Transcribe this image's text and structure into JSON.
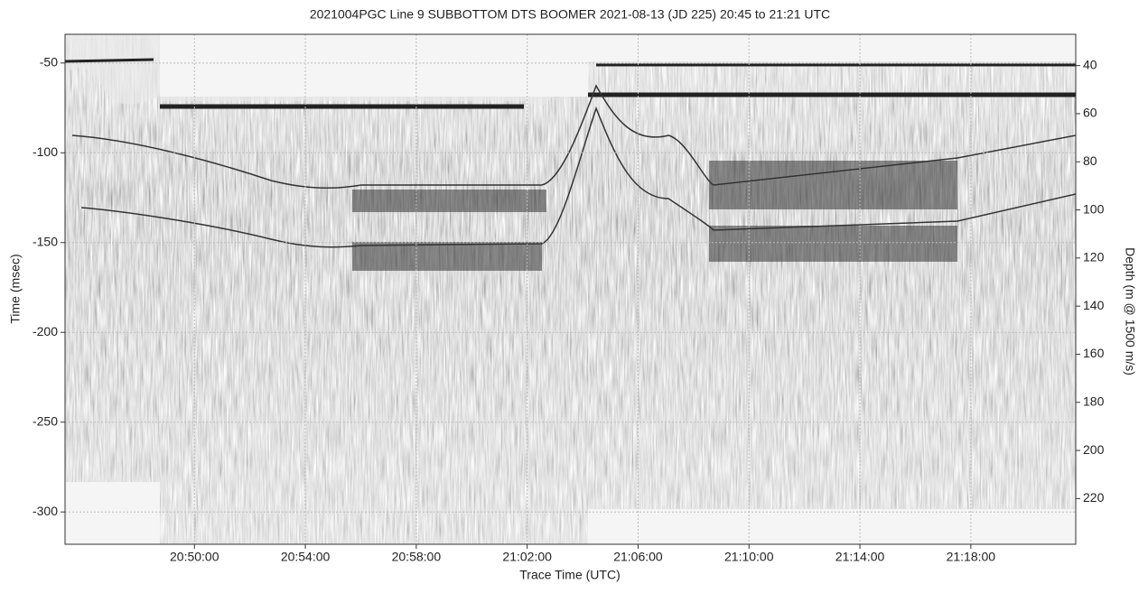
{
  "chart_data": {
    "type": "image",
    "title": "2021004PGC Line 9 SUBBOTTOM DTS BOOMER 2021-08-13 (JD 225) 20:45 to 21:21 UTC",
    "xlabel": "Trace Time (UTC)",
    "ylabel": "Time (msec)",
    "y2label": "Depth (m @ 1500 m/s)",
    "xlim": [
      "20:45:20",
      "21:21:47"
    ],
    "xticks": [
      "20:50:00",
      "20:54:00",
      "20:58:00",
      "21:02:00",
      "21:06:00",
      "21:10:00",
      "21:14:00",
      "21:18:00"
    ],
    "ylim": [
      -34,
      -318
    ],
    "yticks": [
      -50,
      -100,
      -150,
      -200,
      -250,
      -300
    ],
    "y2lim": [
      27,
      239
    ],
    "y2ticks": [
      40,
      60,
      80,
      100,
      120,
      140,
      160,
      180,
      200,
      220
    ],
    "grid": true
  }
}
